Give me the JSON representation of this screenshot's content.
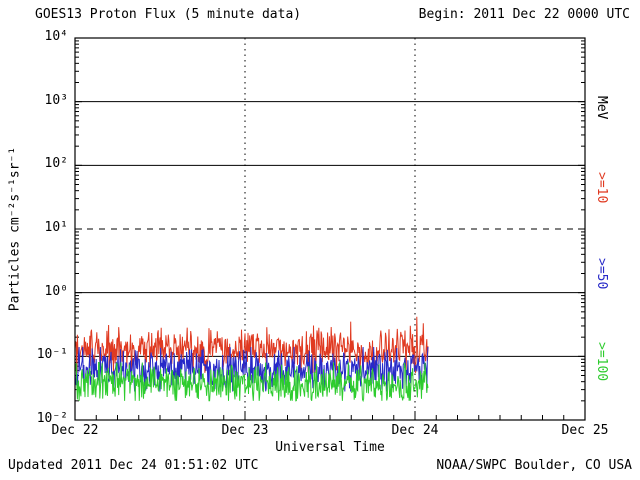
{
  "header": {
    "title": "GOES13 Proton Flux (5 minute data)",
    "begin": "Begin: 2011 Dec 22 0000 UTC"
  },
  "footer": {
    "updated": "Updated 2011 Dec 24 01:51:02 UTC",
    "source": "NOAA/SWPC Boulder, CO USA"
  },
  "axes": {
    "x_label": "Universal Time",
    "y_label": "Particles cm⁻²s⁻¹sr⁻¹",
    "right_unit_label": "MeV",
    "y_tick_labels": [
      "10⁴",
      "10³",
      "10²",
      "10¹",
      "10⁰",
      "10⁻¹",
      "10⁻²"
    ],
    "x_tick_labels": [
      "Dec 22",
      "Dec 23",
      "Dec 24",
      "Dec 25"
    ]
  },
  "legend": [
    {
      "label": ">=10",
      "color": "#e03a21"
    },
    {
      "label": ">=50",
      "color": "#2729c8"
    },
    {
      "label": ">=100",
      "color": "#2ecc2e"
    }
  ],
  "chart_data": {
    "type": "line",
    "title": "GOES13 Proton Flux (5 minute data)",
    "xlabel": "Universal Time",
    "ylabel": "Particles cm-2 s-1 sr-1 (log scale)",
    "x_range_days": [
      0,
      3
    ],
    "x_tick_days": [
      0,
      1,
      2,
      3
    ],
    "ylim_exponents": [
      -2,
      4
    ],
    "y_tick_exponents": [
      4,
      3,
      2,
      1,
      0,
      -1,
      -2
    ],
    "hlines_solid_exponents": [
      3,
      2,
      0,
      -1
    ],
    "hlines_dashed_exponents": [
      1
    ],
    "vlines_dotted_days": [
      1,
      2
    ],
    "grid": true,
    "legend_position": "right",
    "data_start_day": 0,
    "data_end_day": 2.077,
    "sample_interval_days": 0.0034722,
    "series": [
      {
        "name": ">=10 MeV proton flux",
        "label": ">=10",
        "color": "#e03a21",
        "baseline": 0.125,
        "noise_log_sigma": 0.16,
        "spike_prob": 0.05,
        "spike_max_factor": 2.8,
        "min": 0.055,
        "max": 0.42
      },
      {
        "name": ">=50 MeV proton flux",
        "label": ">=50",
        "color": "#2729c8",
        "baseline": 0.062,
        "noise_log_sigma": 0.16,
        "spike_prob": 0.03,
        "spike_max_factor": 1.8,
        "min": 0.028,
        "max": 0.14
      },
      {
        "name": ">=100 MeV proton flux",
        "label": ">=100",
        "color": "#2ecc2e",
        "baseline": 0.037,
        "noise_log_sigma": 0.15,
        "spike_prob": 0.02,
        "spike_max_factor": 1.7,
        "min": 0.02,
        "max": 0.08
      }
    ]
  }
}
